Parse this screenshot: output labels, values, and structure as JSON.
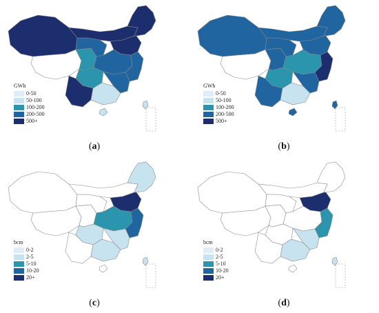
{
  "colors": {
    "c0": "#deedf7",
    "c1": "#c7e3f0",
    "c2": "#2b95ad",
    "c3": "#2065a0",
    "c4": "#1c2e6e",
    "outline": "#8a8a8a",
    "empty": "#ffffff"
  },
  "legend_energy": {
    "unit": "GWh",
    "items": [
      "0-50",
      "50-100",
      "100-200",
      "200-500",
      "500+"
    ]
  },
  "legend_volume": {
    "unit": "bcm",
    "items": [
      "0-2",
      "2-5",
      "5-10",
      "10-20",
      "20+"
    ]
  },
  "panels": [
    {
      "caption_open": "(",
      "caption_letter": "a",
      "caption_close": ")",
      "legend": "energy",
      "regions": {
        "xinjiang": 4,
        "tibet": -1,
        "qinghai": 2,
        "gansu": 3,
        "inner_mongolia": 4,
        "northeast": 4,
        "north": 4,
        "central": 3,
        "sichuan": 2,
        "southwest": 4,
        "south": 1,
        "east": 3,
        "southeast": 3,
        "hainan": 1,
        "taiwan": 1
      }
    },
    {
      "caption_open": "(",
      "caption_letter": "b",
      "caption_close": ")",
      "legend": "energy",
      "regions": {
        "xinjiang": 3,
        "tibet": -1,
        "qinghai": 3,
        "gansu": 3,
        "inner_mongolia": 3,
        "northeast": 3,
        "north": 3,
        "central": 2,
        "sichuan": 2,
        "southwest": 3,
        "south": 1,
        "east": 4,
        "southeast": 3,
        "hainan": 3,
        "taiwan": 3
      }
    },
    {
      "caption_open": "(",
      "caption_letter": "c",
      "caption_close": ")",
      "legend": "volume",
      "regions": {
        "xinjiang": -1,
        "tibet": -1,
        "qinghai": -1,
        "gansu": -1,
        "inner_mongolia": -1,
        "northeast": 1,
        "north": 4,
        "central": 2,
        "sichuan": 1,
        "southwest": -1,
        "south": 1,
        "east": 3,
        "southeast": 1,
        "hainan": -1,
        "taiwan": 1
      }
    },
    {
      "caption_open": "(",
      "caption_letter": "d",
      "caption_close": ")",
      "legend": "volume",
      "regions": {
        "xinjiang": -1,
        "tibet": -1,
        "qinghai": -1,
        "gansu": -1,
        "inner_mongolia": -1,
        "northeast": -1,
        "north": 4,
        "central": -1,
        "sichuan": -1,
        "southwest": -1,
        "south": 1,
        "east": 2,
        "southeast": 1,
        "hainan": -1,
        "taiwan": 1
      }
    }
  ]
}
